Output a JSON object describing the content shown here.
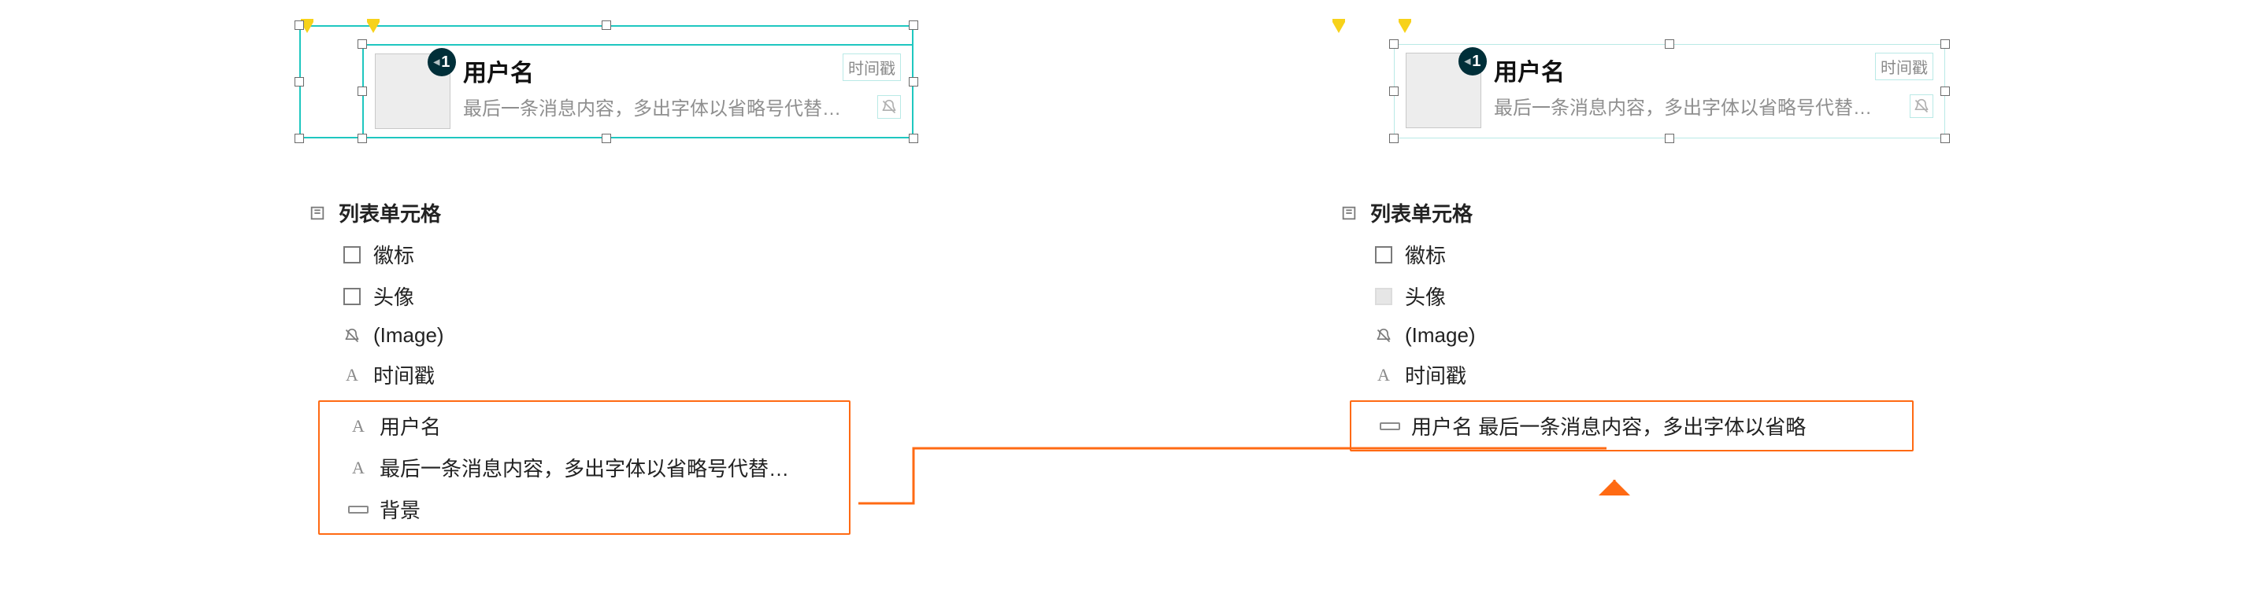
{
  "colors": {
    "selection_teal": "#1fc7c0",
    "selection_teal_light": "#b9e9e6",
    "highlight_orange": "#ff6a13",
    "pin_yellow": "#f7d21a",
    "badge_bg": "#002f39",
    "text_primary": "#111111",
    "text_secondary": "#8f8f8f",
    "avatar_fill": "#ededed"
  },
  "card": {
    "badge_value": "1",
    "username": "用户名",
    "timestamp": "时间戳",
    "message": "最后一条消息内容，多出字体以省略号代替…",
    "mute_icon": "bell-off"
  },
  "tree_left": {
    "root": "列表单元格",
    "items": [
      {
        "icon": "square",
        "label": "徽标"
      },
      {
        "icon": "square",
        "label": "头像"
      },
      {
        "icon": "bell-off",
        "label": "(Image)"
      },
      {
        "icon": "text",
        "label": "时间戳"
      }
    ],
    "highlight": [
      {
        "icon": "text",
        "label": "用户名"
      },
      {
        "icon": "text",
        "label": "最后一条消息内容，多出字体以省略号代替…"
      },
      {
        "icon": "slab",
        "label": "背景"
      }
    ]
  },
  "tree_right": {
    "root": "列表单元格",
    "items": [
      {
        "icon": "square",
        "label": "徽标"
      },
      {
        "icon": "square-fill",
        "label": "头像"
      },
      {
        "icon": "bell-off",
        "label": "(Image)"
      },
      {
        "icon": "text",
        "label": "时间戳"
      }
    ],
    "highlight_single": {
      "icon": "slab",
      "label": "用户名 最后一条消息内容，多出字体以省略"
    }
  }
}
